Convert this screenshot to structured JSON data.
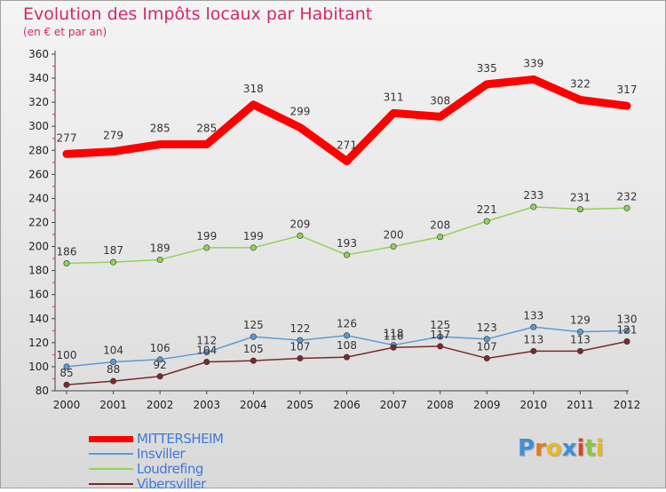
{
  "title": "Evolution des Impôts locaux par Habitant",
  "subtitle": "(en € et par an)",
  "chart_data": {
    "type": "line",
    "title": "Evolution des Impôts locaux par Habitant",
    "subtitle": "(en € et par an)",
    "x": [
      2000,
      2001,
      2002,
      2003,
      2004,
      2005,
      2006,
      2007,
      2008,
      2009,
      2010,
      2011,
      2012
    ],
    "ylim": [
      80,
      360
    ],
    "yticks": [
      80,
      100,
      120,
      140,
      160,
      180,
      200,
      220,
      240,
      260,
      280,
      300,
      320,
      340,
      360
    ],
    "grid": false,
    "legend": "bottom-left",
    "series": [
      {
        "name": "MITTERSHEIM",
        "color": "#ff0000",
        "values": [
          277,
          279,
          285,
          285,
          318,
          299,
          271,
          311,
          308,
          335,
          339,
          322,
          317
        ]
      },
      {
        "name": "Insviller",
        "color": "#5b9bd5",
        "values": [
          100,
          104,
          106,
          112,
          125,
          122,
          126,
          118,
          125,
          123,
          133,
          129,
          130
        ]
      },
      {
        "name": "Loudrefing",
        "color": "#8fd35a",
        "values": [
          186,
          187,
          189,
          199,
          199,
          209,
          193,
          200,
          208,
          221,
          233,
          231,
          232
        ]
      },
      {
        "name": "Vibersviller",
        "color": "#7a2a2a",
        "values": [
          85,
          88,
          92,
          104,
          105,
          107,
          108,
          116,
          117,
          107,
          113,
          113,
          121
        ]
      }
    ]
  },
  "logo": {
    "letters": [
      "P",
      "r",
      "o",
      "x",
      "i",
      "t",
      "i"
    ],
    "colors": [
      "#3d8fd9",
      "#e07a20",
      "#e8b820",
      "#3d8fd9",
      "#e04030",
      "#8cc63f",
      "#e8b820"
    ]
  }
}
